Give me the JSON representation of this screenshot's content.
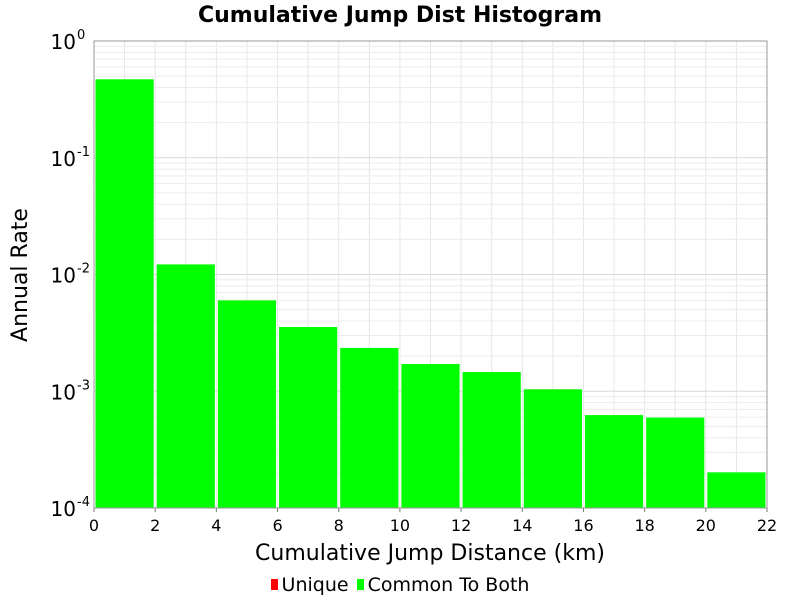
{
  "chart_data": {
    "type": "bar",
    "title": "Cumulative Jump Dist Histogram",
    "xlabel": "Cumulative Jump Distance (km)",
    "ylabel": "Annual Rate",
    "xlim": [
      0,
      22
    ],
    "ylim": [
      0.0001,
      1
    ],
    "yscale": "log",
    "grid": true,
    "legend_position": "bottom-center",
    "x_ticks": [
      "0",
      "2",
      "4",
      "6",
      "8",
      "10",
      "12",
      "14",
      "16",
      "18",
      "20",
      "22"
    ],
    "y_ticks": [
      {
        "base": "10",
        "exp": "0",
        "value": 1
      },
      {
        "base": "10",
        "exp": "-1",
        "value": 0.1
      },
      {
        "base": "10",
        "exp": "-2",
        "value": 0.01
      },
      {
        "base": "10",
        "exp": "-3",
        "value": 0.001
      },
      {
        "base": "10",
        "exp": "-4",
        "value": 0.0001
      }
    ],
    "bin_width": 2,
    "x": [
      1,
      3,
      5,
      7,
      9,
      11,
      13,
      15,
      17,
      19,
      21
    ],
    "series": [
      {
        "name": "Unique",
        "color": "#ff0000",
        "values": [
          0,
          0,
          0,
          0,
          0,
          0,
          0,
          0,
          0,
          0,
          0
        ]
      },
      {
        "name": "Common To Both",
        "color": "#00ff00",
        "values": [
          0.47,
          0.0122,
          0.006,
          0.00355,
          0.00235,
          0.00171,
          0.00146,
          0.00104,
          0.000625,
          0.000595,
          0.000202
        ]
      }
    ]
  }
}
